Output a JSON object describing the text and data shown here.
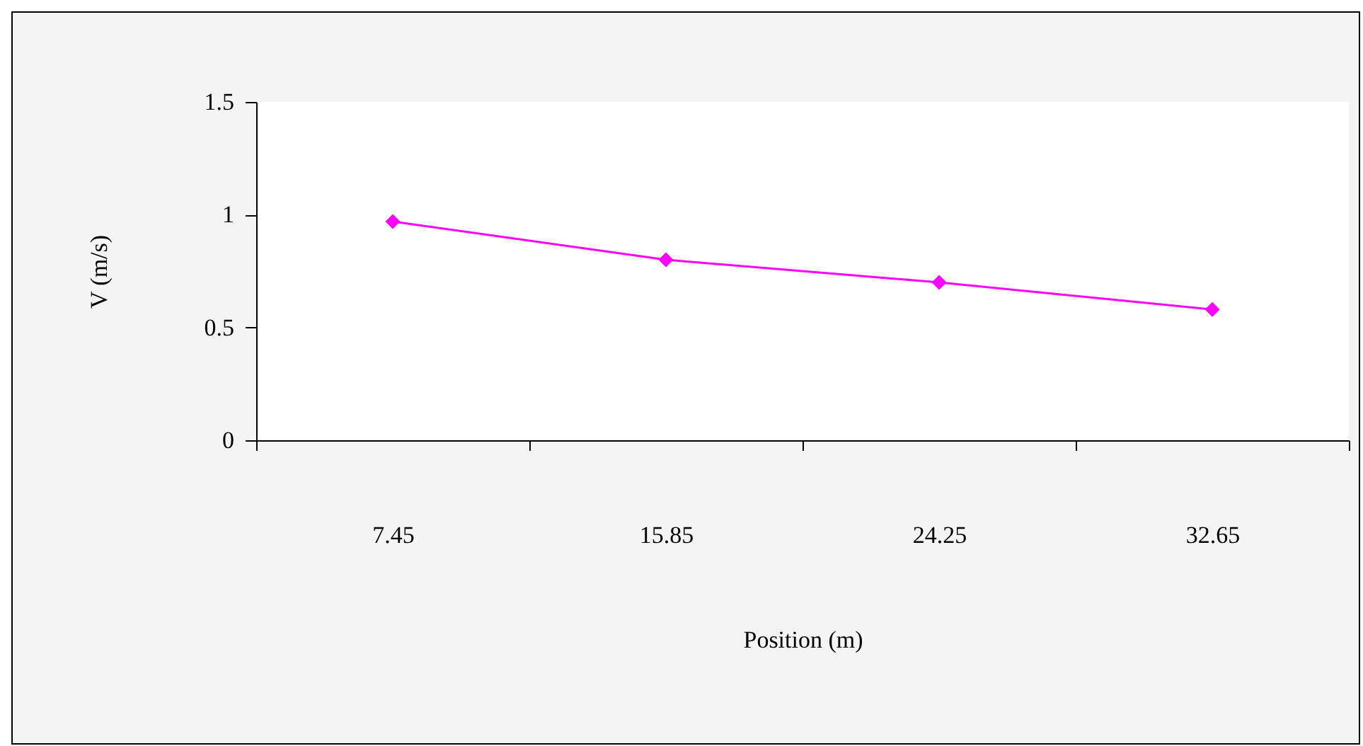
{
  "chart_data": {
    "type": "line",
    "xlabel": "Position (m)",
    "ylabel": "V (m/s)",
    "categories": [
      "7.45",
      "15.85",
      "24.25",
      "32.65"
    ],
    "series": [
      {
        "color": "#ff00ff",
        "values": [
          0.97,
          0.8,
          0.7,
          0.58
        ]
      }
    ],
    "ylim": [
      0,
      1.5
    ],
    "yticks": [
      0,
      0.5,
      1,
      1.5
    ],
    "grid": false,
    "legend": false,
    "marker": "diamond",
    "line_style": "solid"
  }
}
